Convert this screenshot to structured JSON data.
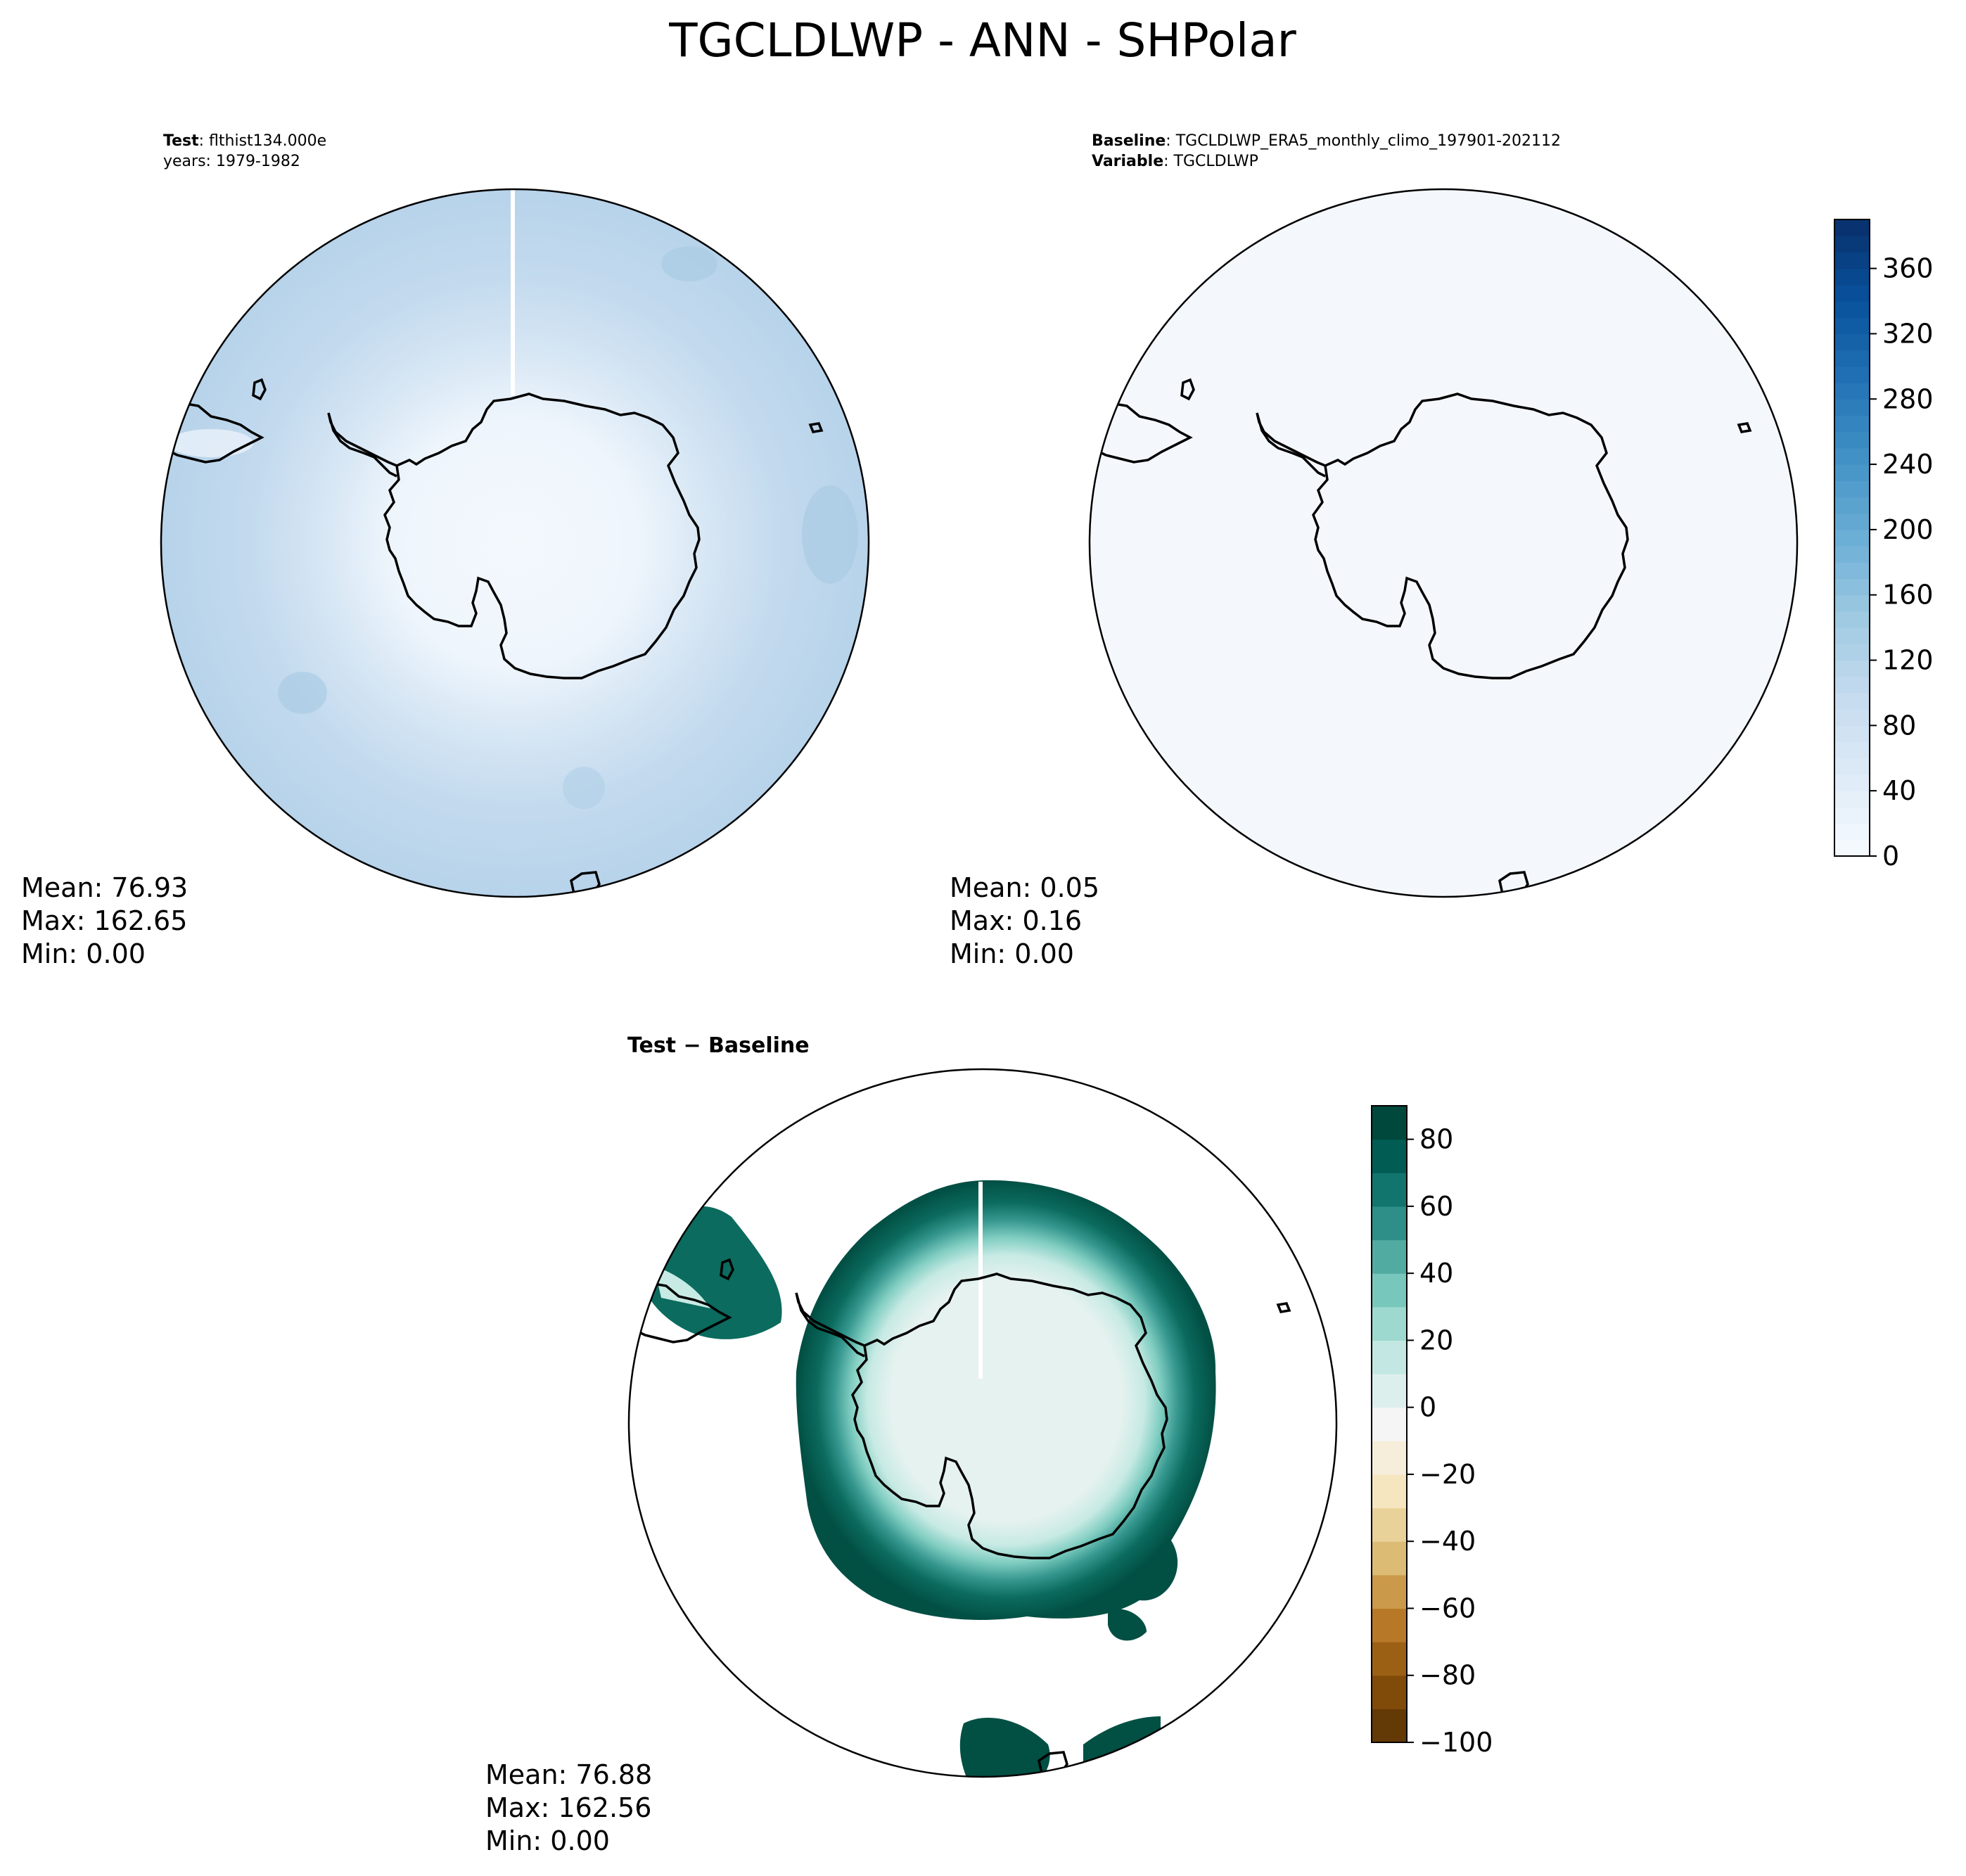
{
  "title": "TGCLDLWP - ANN - SHPolar",
  "panels": {
    "test": {
      "label_bold": "Test",
      "label_value": "flthist134.000e",
      "line2": "years: 1979-1982",
      "stats": {
        "mean": "Mean: 76.93",
        "max": "Max: 162.65",
        "min": "Min:  0.00"
      }
    },
    "baseline": {
      "label_bold": "Baseline",
      "label_value": "TGCLDLWP_ERA5_monthly_climo_197901-202112",
      "var_bold": "Variable",
      "var_value": "TGCLDLWP",
      "stats": {
        "mean": "Mean:  0.05",
        "max": "Max:  0.16",
        "min": "Min:  0.00"
      }
    },
    "diff": {
      "title": "Test − Baseline",
      "stats": {
        "mean": "Mean: 76.88",
        "max": "Max: 162.56",
        "min": "Min:  0.00"
      }
    }
  },
  "colorbars": {
    "top": {
      "ticks": [
        "0",
        "40",
        "80",
        "120",
        "160",
        "200",
        "240",
        "280",
        "320",
        "360"
      ],
      "range": [
        0,
        390
      ],
      "colormap": "Blues"
    },
    "diff": {
      "ticks": [
        "−100",
        "−80",
        "−60",
        "−40",
        "−20",
        "0",
        "20",
        "40",
        "60",
        "80"
      ],
      "range": [
        -100,
        90
      ],
      "colormap": "BrBG"
    }
  },
  "colors": {
    "ocean_fill_test": "#c4dbee",
    "land_fill_test": "#f3f8fd",
    "baseline_fill": "#f4f8fd",
    "diff_outer": "#024f44",
    "diff_inner": "#e6f2ef"
  }
}
